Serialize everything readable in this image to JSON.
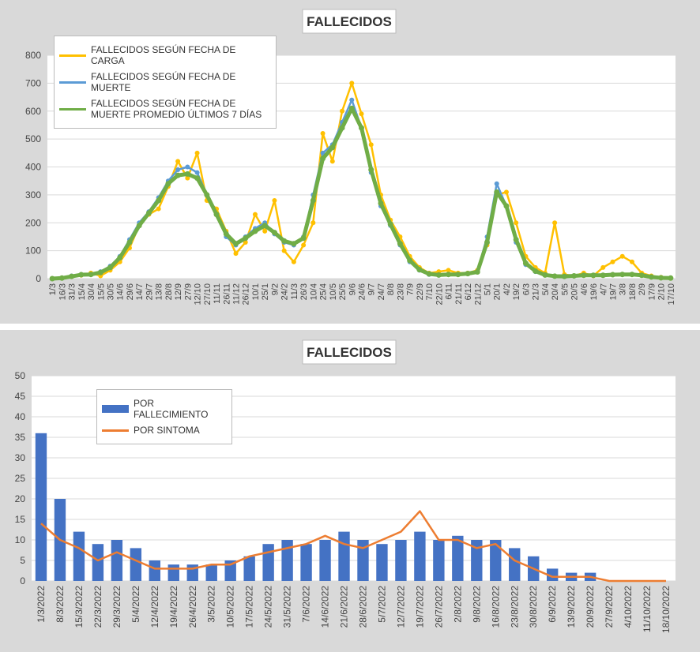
{
  "chart_data": [
    {
      "type": "line",
      "title": "FALLECIDOS",
      "categories": [
        "1/3",
        "16/3",
        "31/3",
        "15/4",
        "30/4",
        "15/5",
        "30/5",
        "14/6",
        "29/6",
        "14/7",
        "29/7",
        "13/8",
        "28/8",
        "12/9",
        "27/9",
        "12/10",
        "27/10",
        "11/11",
        "26/11",
        "11/12",
        "26/12",
        "10/1",
        "25/1",
        "9/2",
        "24/2",
        "11/3",
        "26/3",
        "10/4",
        "25/4",
        "10/5",
        "25/5",
        "9/6",
        "24/6",
        "9/7",
        "24/7",
        "8/8",
        "23/8",
        "7/9",
        "22/9",
        "7/10",
        "22/10",
        "6/11",
        "21/11",
        "6/12",
        "21/12",
        "5/1",
        "20/1",
        "4/2",
        "19/2",
        "6/3",
        "21/3",
        "5/4",
        "20/4",
        "5/5",
        "20/5",
        "4/6",
        "19/6",
        "4/7",
        "19/7",
        "3/8",
        "18/8",
        "2/9",
        "17/9",
        "2/10",
        "17/10"
      ],
      "series": [
        {
          "name": "FALLECIDOS SEGÚN FECHA DE CARGA",
          "color": "#ffc000",
          "values": [
            0,
            3,
            8,
            12,
            20,
            10,
            30,
            60,
            110,
            190,
            230,
            250,
            330,
            420,
            360,
            450,
            280,
            250,
            170,
            90,
            130,
            230,
            170,
            280,
            100,
            60,
            120,
            200,
            520,
            420,
            600,
            700,
            590,
            480,
            300,
            210,
            150,
            80,
            40,
            20,
            25,
            30,
            20,
            20,
            30,
            120,
            300,
            310,
            200,
            80,
            40,
            20,
            200,
            15,
            10,
            20,
            10,
            40,
            60,
            80,
            60,
            20,
            10,
            5,
            3
          ]
        },
        {
          "name": "FALLECIDOS SEGÚN FECHA DE MUERTE",
          "color": "#5b9bd5",
          "values": [
            0,
            2,
            10,
            15,
            15,
            25,
            45,
            80,
            140,
            200,
            240,
            290,
            350,
            390,
            400,
            380,
            300,
            230,
            150,
            120,
            150,
            180,
            200,
            160,
            130,
            120,
            150,
            300,
            450,
            480,
            560,
            640,
            540,
            380,
            260,
            190,
            120,
            60,
            30,
            15,
            12,
            15,
            15,
            18,
            25,
            150,
            340,
            260,
            130,
            50,
            25,
            12,
            8,
            8,
            10,
            12,
            12,
            12,
            15,
            15,
            15,
            12,
            5,
            3,
            2
          ]
        },
        {
          "name": "FALLECIDOS SEGÚN FECHA DE MUERTE PROMEDIO ÚLTIMOS 7 DÍAS",
          "color": "#70ad47",
          "values": [
            0,
            2,
            8,
            14,
            15,
            22,
            40,
            75,
            130,
            190,
            235,
            280,
            340,
            370,
            375,
            360,
            300,
            230,
            160,
            125,
            145,
            170,
            190,
            165,
            135,
            125,
            145,
            280,
            430,
            470,
            540,
            610,
            540,
            390,
            270,
            195,
            125,
            65,
            32,
            17,
            13,
            15,
            15,
            18,
            24,
            130,
            310,
            260,
            140,
            55,
            27,
            13,
            9,
            8,
            10,
            12,
            12,
            12,
            14,
            15,
            15,
            12,
            6,
            3,
            2
          ]
        }
      ],
      "ylim": [
        0,
        800
      ],
      "yticks": [
        0,
        100,
        200,
        300,
        400,
        500,
        600,
        700,
        800
      ],
      "grid": true,
      "legend": "top-left"
    },
    {
      "type": "bar",
      "title": "FALLECIDOS",
      "categories": [
        "1/3/2022",
        "8/3/2022",
        "15/3/2022",
        "22/3/2022",
        "29/3/2022",
        "5/4/2022",
        "12/4/2022",
        "19/4/2022",
        "26/4/2022",
        "3/5/2022",
        "10/5/2022",
        "17/5/2022",
        "24/5/2022",
        "31/5/2022",
        "7/6/2022",
        "14/6/2022",
        "21/6/2022",
        "28/6/2022",
        "5/7/2022",
        "12/7/2022",
        "19/7/2022",
        "26/7/2022",
        "2/8/2022",
        "9/8/2022",
        "16/8/2022",
        "23/8/2022",
        "30/8/2022",
        "6/9/2022",
        "13/9/2022",
        "20/9/2022",
        "27/9/2022",
        "4/10/2022",
        "11/10/2022",
        "18/10/2022"
      ],
      "series": [
        {
          "name": "POR FALLECIMIENTO",
          "color": "#4472c4",
          "kind": "bar",
          "values": [
            36,
            20,
            12,
            9,
            10,
            8,
            5,
            4,
            4,
            4,
            5,
            6,
            9,
            10,
            9,
            10,
            12,
            10,
            9,
            10,
            12,
            10,
            11,
            10,
            10,
            8,
            6,
            3,
            2,
            2,
            0,
            0,
            0,
            0
          ]
        },
        {
          "name": "POR SINTOMA",
          "color": "#ed7d31",
          "kind": "line",
          "values": [
            14,
            10,
            8,
            5,
            7,
            5,
            3,
            3,
            3,
            4,
            4,
            6,
            7,
            8,
            9,
            11,
            9,
            8,
            10,
            12,
            17,
            10,
            10,
            8,
            9,
            5,
            3,
            1,
            1,
            1,
            0,
            0,
            0,
            0
          ]
        }
      ],
      "ylim": [
        0,
        50
      ],
      "yticks": [
        0,
        5,
        10,
        15,
        20,
        25,
        30,
        35,
        40,
        45,
        50
      ],
      "grid": true,
      "legend": "top-left"
    }
  ]
}
